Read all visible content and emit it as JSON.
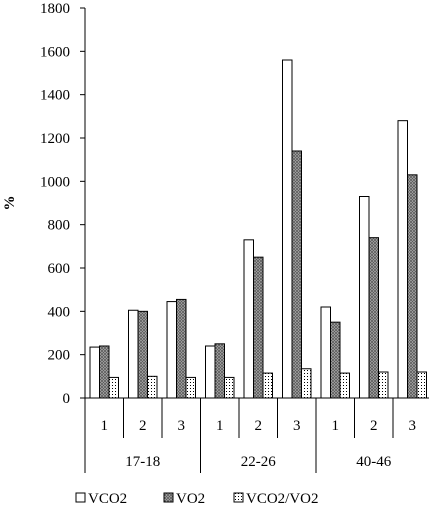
{
  "chart_data": {
    "type": "bar",
    "ylabel": "%",
    "ylim": [
      0,
      1800
    ],
    "yticks": [
      0,
      200,
      400,
      600,
      800,
      1000,
      1200,
      1400,
      1600,
      1800
    ],
    "groups": [
      {
        "label": "17-18",
        "categories": [
          "1",
          "2",
          "3"
        ]
      },
      {
        "label": "22-26",
        "categories": [
          "1",
          "2",
          "3"
        ]
      },
      {
        "label": "40-46",
        "categories": [
          "1",
          "2",
          "3"
        ]
      }
    ],
    "series": [
      {
        "name": "VCO2",
        "pattern": "white",
        "values": [
          235,
          405,
          445,
          240,
          730,
          1560,
          420,
          930,
          1280
        ]
      },
      {
        "name": "VO2",
        "pattern": "crosshatch",
        "values": [
          240,
          400,
          455,
          250,
          650,
          1140,
          350,
          740,
          1030
        ]
      },
      {
        "name": "VCO2/VO2",
        "pattern": "dots",
        "values": [
          95,
          100,
          95,
          95,
          115,
          135,
          115,
          120,
          120
        ]
      }
    ],
    "grid": false,
    "legend_position": "bottom"
  }
}
